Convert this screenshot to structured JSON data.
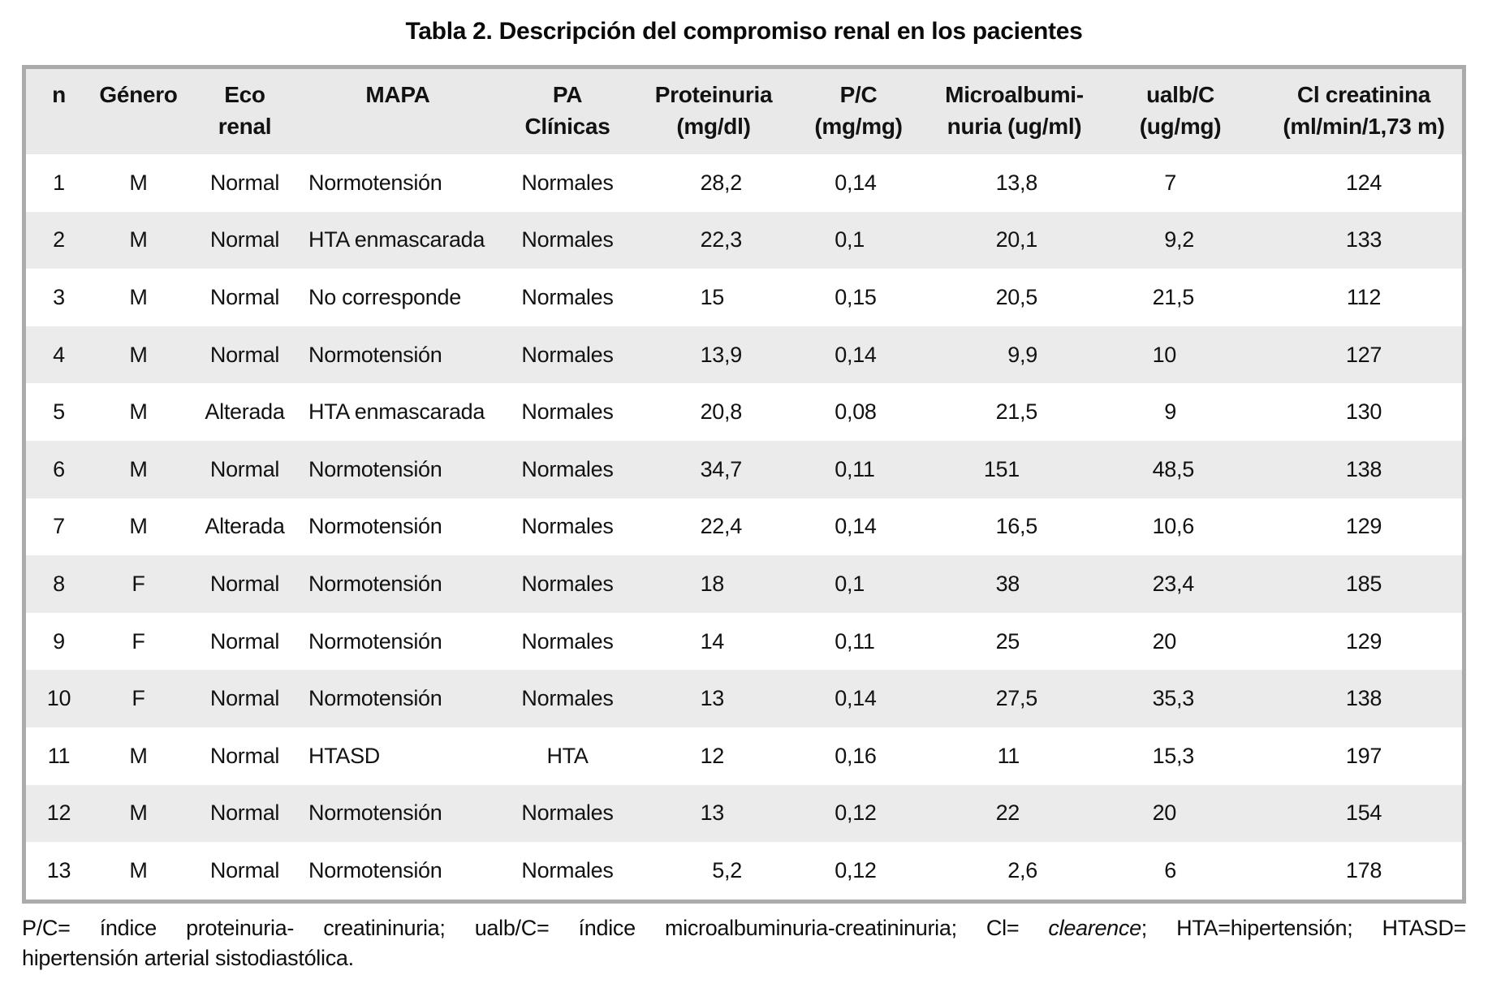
{
  "title": "Tabla 2. Descripción del compromiso renal en los pacientes",
  "colors": {
    "header_bg": "#e9e9e9",
    "row_stripe": "#ebebeb",
    "table_border": "#ababab",
    "text": "#121212"
  },
  "table": {
    "columns": [
      {
        "id": "n",
        "lines": [
          "n"
        ]
      },
      {
        "id": "genero",
        "lines": [
          "Género"
        ]
      },
      {
        "id": "eco-renal",
        "lines": [
          "Eco",
          "renal"
        ]
      },
      {
        "id": "mapa",
        "lines": [
          "MAPA"
        ]
      },
      {
        "id": "pa-clinicas",
        "lines": [
          "PA",
          "Clínicas"
        ]
      },
      {
        "id": "proteinuria",
        "lines": [
          "Proteinuria",
          "(mg/dl)"
        ]
      },
      {
        "id": "pc",
        "lines": [
          "P/C",
          "(mg/mg)"
        ]
      },
      {
        "id": "microalbuminuria",
        "lines": [
          "Microalbumi-",
          "nuria (ug/ml)"
        ]
      },
      {
        "id": "ualbc",
        "lines": [
          "ualb/C",
          "(ug/mg)"
        ]
      },
      {
        "id": "cl-creatinina",
        "lines": [
          "Cl creatinina",
          "(ml/min/1,73 m)"
        ]
      }
    ],
    "rows": [
      [
        "1",
        "M",
        "Normal",
        "Normotensión",
        "Normales",
        "28,2",
        "0,14",
        "13,8",
        "7",
        "124"
      ],
      [
        "2",
        "M",
        "Normal",
        "HTA enmascarada",
        "Normales",
        "22,3",
        "0,1",
        "20,1",
        "9,2",
        "133"
      ],
      [
        "3",
        "M",
        "Normal",
        "No corresponde",
        "Normales",
        "15",
        "0,15",
        "20,5",
        "21,5",
        "112"
      ],
      [
        "4",
        "M",
        "Normal",
        "Normotensión",
        "Normales",
        "13,9",
        "0,14",
        "9,9",
        "10",
        "127"
      ],
      [
        "5",
        "M",
        "Alterada",
        "HTA enmascarada",
        "Normales",
        "20,8",
        "0,08",
        "21,5",
        "9",
        "130"
      ],
      [
        "6",
        "M",
        "Normal",
        "Normotensión",
        "Normales",
        "34,7",
        "0,11",
        "151",
        "48,5",
        "138"
      ],
      [
        "7",
        "M",
        "Alterada",
        "Normotensión",
        "Normales",
        "22,4",
        "0,14",
        "16,5",
        "10,6",
        "129"
      ],
      [
        "8",
        "F",
        "Normal",
        "Normotensión",
        "Normales",
        "18",
        "0,1",
        "38",
        "23,4",
        "185"
      ],
      [
        "9",
        "F",
        "Normal",
        "Normotensión",
        "Normales",
        "14",
        "0,11",
        "25",
        "20",
        "129"
      ],
      [
        "10",
        "F",
        "Normal",
        "Normotensión",
        "Normales",
        "13",
        "0,14",
        "27,5",
        "35,3",
        "138"
      ],
      [
        "11",
        "M",
        "Normal",
        "HTASD",
        "HTA",
        "12",
        "0,16",
        "11",
        "15,3",
        "197"
      ],
      [
        "12",
        "M",
        "Normal",
        "Normotensión",
        "Normales",
        "13",
        "0,12",
        "22",
        "20",
        "154"
      ],
      [
        "13",
        "M",
        "Normal",
        "Normotensión",
        "Normales",
        "5,2",
        "0,12",
        "2,6",
        "6",
        "178"
      ]
    ]
  },
  "footnote": {
    "line1_segments": [
      {
        "text": "P/C= índice proteinuria- creatininuria; ualb/C= índice microalbuminuria-creatininuria; Cl= ",
        "italic": false
      },
      {
        "text": "clearence",
        "italic": true
      },
      {
        "text": "; HTA=hipertensión; HTASD=",
        "italic": false
      }
    ],
    "line2": "hipertensión arterial sistodiastólica."
  }
}
